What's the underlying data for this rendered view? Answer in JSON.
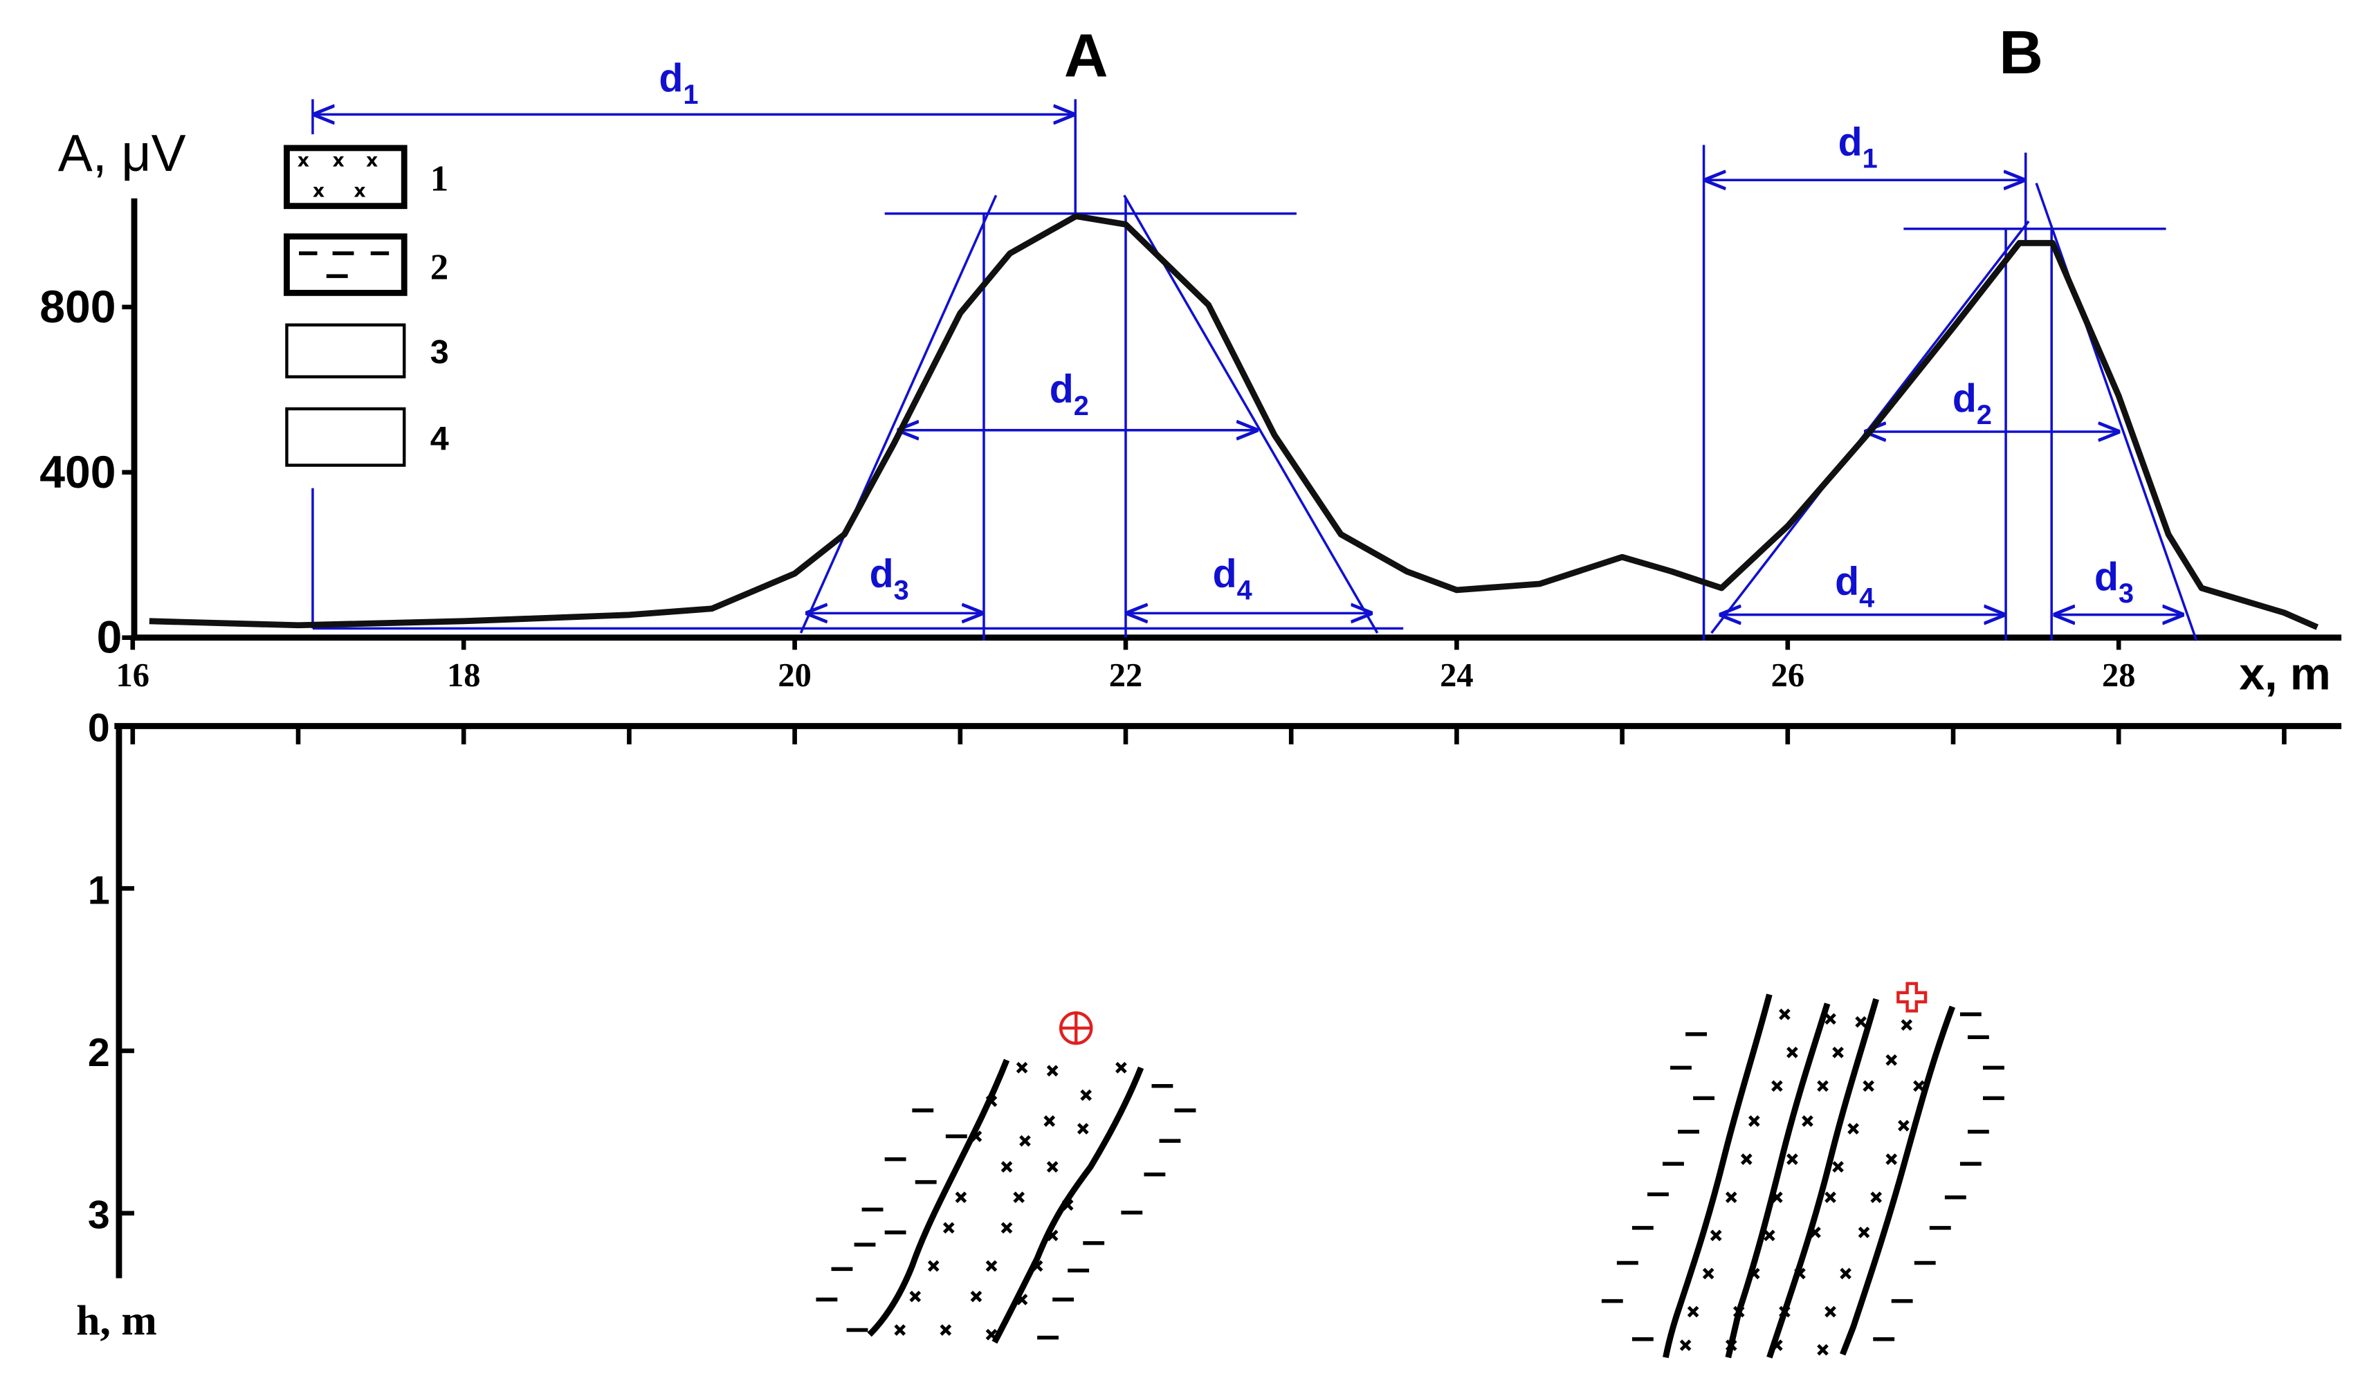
{
  "chart_data": [
    {
      "type": "line",
      "ylabel": "A, μV",
      "xlabel": "x, m",
      "xlim": [
        16,
        29.3
      ],
      "xticks": [
        16,
        18,
        20,
        22,
        24,
        26,
        28
      ],
      "ylim": [
        0,
        1100
      ],
      "yticks": [
        0,
        400,
        800
      ],
      "peak_labels": [
        "A",
        "B"
      ],
      "legend": [
        "1",
        "2",
        "3",
        "4"
      ],
      "annotations": [
        {
          "main": "d",
          "sub": "1"
        },
        {
          "main": "d",
          "sub": "2"
        },
        {
          "main": "d",
          "sub": "3"
        },
        {
          "main": "d",
          "sub": "4"
        },
        {
          "main": "d",
          "sub": "1"
        },
        {
          "main": "d",
          "sub": "2"
        },
        {
          "main": "d",
          "sub": "4"
        },
        {
          "main": "d",
          "sub": "3"
        }
      ],
      "series": [
        {
          "color": "#111111",
          "x": [
            16.1,
            17,
            18,
            19,
            19.5,
            20,
            20.3,
            20.6,
            21,
            21.3,
            21.7,
            22,
            22.5,
            22.9,
            23.3,
            23.7,
            24,
            24.5,
            25,
            25.3,
            25.6,
            26,
            26.5,
            27,
            27.4,
            27.6,
            28,
            28.3,
            28.5,
            29,
            29.2
          ],
          "values": [
            40,
            30,
            40,
            55,
            70,
            155,
            250,
            470,
            785,
            930,
            1020,
            1000,
            805,
            490,
            250,
            160,
            115,
            130,
            195,
            160,
            120,
            270,
            500,
            750,
            955,
            955,
            585,
            250,
            120,
            60,
            25
          ]
        }
      ]
    },
    {
      "type": "scatter",
      "ylabel": "h, m",
      "xlim": [
        16,
        29.3
      ],
      "xticks": [
        16,
        17,
        18,
        19,
        20,
        21,
        22,
        23,
        24,
        25,
        26,
        27,
        28,
        29
      ],
      "ylim": [
        0,
        3.4
      ],
      "yticks": [
        0,
        1,
        2,
        3
      ],
      "series": [
        {
          "symbol": "square-cross",
          "color": "#e02020",
          "x": [
            26.75
          ],
          "values": [
            1.67
          ]
        },
        {
          "symbol": "circle-plus",
          "color": "#e02020",
          "x": [
            21.7
          ],
          "values": [
            1.86
          ]
        }
      ]
    }
  ]
}
